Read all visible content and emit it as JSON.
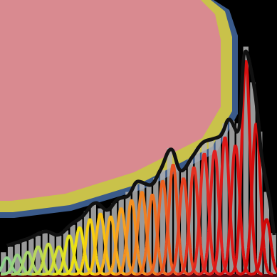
{
  "chart_data": {
    "type": "histogram",
    "xlim": [
      0,
      40
    ],
    "ylim": [
      0,
      100
    ],
    "grid": false,
    "tick_labels": false,
    "color": "#b4b4b4",
    "bins": [
      0,
      1,
      2,
      3,
      4,
      5,
      6,
      7,
      8,
      9,
      10,
      11,
      12,
      13,
      14,
      15,
      16,
      17,
      18,
      19,
      20,
      21,
      22,
      23,
      24,
      25,
      26,
      27,
      28,
      29,
      30,
      31,
      32,
      33,
      34,
      35,
      36,
      37,
      38,
      39,
      40
    ],
    "counts": [
      8,
      10,
      11,
      12,
      13,
      14,
      16,
      15,
      14,
      16,
      18,
      20,
      23,
      26,
      24,
      23,
      26,
      28,
      30,
      33,
      34,
      32,
      35,
      38,
      46,
      40,
      38,
      42,
      46,
      48,
      49,
      50,
      55,
      56,
      55,
      83,
      70,
      52,
      30,
      15
    ],
    "envelope": {
      "color": "#111111",
      "x": [
        1.0,
        4.1,
        6.7,
        8.2,
        10.3,
        11.8,
        13.9,
        15.4,
        17.0,
        18.5,
        20.0,
        21.6,
        23.1,
        24.7,
        26.2,
        27.8,
        29.3,
        30.8,
        31.9,
        33.1,
        34.2,
        35.5,
        36.5,
        37.2,
        37.8,
        38.9,
        39.6
      ],
      "values": [
        10.4,
        13,
        15.6,
        14.3,
        18.2,
        20.8,
        26,
        23.4,
        27.3,
        28.6,
        33.8,
        32.5,
        37.7,
        45.5,
        37.7,
        42.9,
        48,
        49.4,
        50.6,
        56.4,
        51.9,
        81.3,
        71.4,
        58.4,
        42.9,
        27.3,
        14.3
      ]
    },
    "peaks": [
      {
        "center": 1.0,
        "height": 6,
        "sigma": 0.6,
        "color": "#8fd18a"
      },
      {
        "center": 2.5,
        "height": 7,
        "sigma": 0.6,
        "color": "#9ad47e"
      },
      {
        "center": 4.0,
        "height": 8,
        "sigma": 0.6,
        "color": "#a8d46a"
      },
      {
        "center": 5.5,
        "height": 10,
        "sigma": 0.6,
        "color": "#b9d85a"
      },
      {
        "center": 7.0,
        "height": 11,
        "sigma": 0.6,
        "color": "#c8dc40"
      },
      {
        "center": 8.5,
        "height": 10,
        "sigma": 0.6,
        "color": "#d6e030"
      },
      {
        "center": 10.0,
        "height": 14,
        "sigma": 0.6,
        "color": "#e4e41c"
      },
      {
        "center": 11.5,
        "height": 17,
        "sigma": 0.6,
        "color": "#f0e010"
      },
      {
        "center": 13.0,
        "height": 20,
        "sigma": 0.6,
        "color": "#f6d010"
      },
      {
        "center": 14.5,
        "height": 22,
        "sigma": 0.6,
        "color": "#f8c010"
      },
      {
        "center": 16.0,
        "height": 21,
        "sigma": 0.6,
        "color": "#f8b018"
      },
      {
        "center": 17.5,
        "height": 24,
        "sigma": 0.6,
        "color": "#f6a020"
      },
      {
        "center": 19.0,
        "height": 27,
        "sigma": 0.6,
        "color": "#f49020"
      },
      {
        "center": 20.5,
        "height": 30,
        "sigma": 0.6,
        "color": "#f08020"
      },
      {
        "center": 22.0,
        "height": 29,
        "sigma": 0.6,
        "color": "#ee7020"
      },
      {
        "center": 23.5,
        "height": 34,
        "sigma": 0.6,
        "color": "#ec6020"
      },
      {
        "center": 25.0,
        "height": 40,
        "sigma": 0.6,
        "color": "#e85020"
      },
      {
        "center": 26.5,
        "height": 35,
        "sigma": 0.6,
        "color": "#e64020"
      },
      {
        "center": 28.0,
        "height": 39,
        "sigma": 0.6,
        "color": "#e43020"
      },
      {
        "center": 29.5,
        "height": 44,
        "sigma": 0.6,
        "color": "#e22820"
      },
      {
        "center": 31.0,
        "height": 45,
        "sigma": 0.6,
        "color": "#e02020"
      },
      {
        "center": 32.5,
        "height": 50,
        "sigma": 0.6,
        "color": "#de1818"
      },
      {
        "center": 34.0,
        "height": 47,
        "sigma": 0.6,
        "color": "#dc1414"
      },
      {
        "center": 35.5,
        "height": 78,
        "sigma": 0.6,
        "color": "#d81010"
      },
      {
        "center": 37.0,
        "height": 55,
        "sigma": 0.6,
        "color": "#d40c0c"
      },
      {
        "center": 38.5,
        "height": 20,
        "sigma": 0.6,
        "color": "#d00a0a"
      }
    ]
  }
}
